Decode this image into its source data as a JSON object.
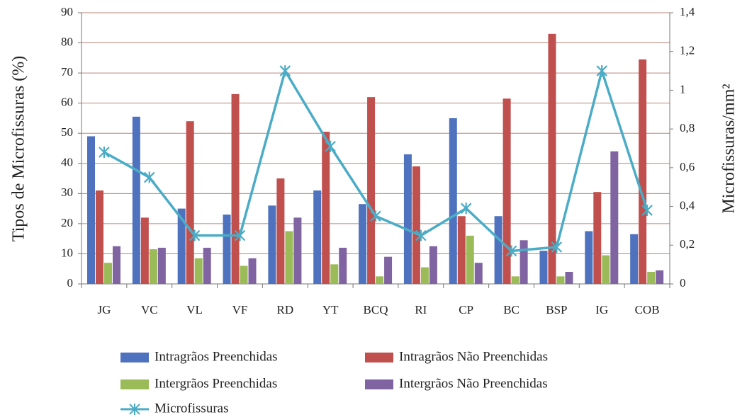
{
  "chart_data": {
    "type": "bar",
    "y_label": "Tipos de Microfissuras (%)",
    "y2_label": "Microfissuras/mm²",
    "categories": [
      "JG",
      "VC",
      "VL",
      "VF",
      "RD",
      "YT",
      "BCQ",
      "RI",
      "CP",
      "BC",
      "BSP",
      "IG",
      "COB"
    ],
    "series": [
      {
        "name": "Intragrãos Preenchidas",
        "color": "#4f72bf",
        "values": [
          49,
          55.5,
          25,
          23,
          26,
          31,
          26.5,
          43,
          55,
          22.5,
          11,
          17.5,
          16.5
        ]
      },
      {
        "name": "Intragrãos Não Preenchidas",
        "color": "#c0504d",
        "values": [
          31,
          22,
          54,
          63,
          35,
          50.5,
          62,
          39,
          22.5,
          61.5,
          83,
          30.5,
          74.5
        ]
      },
      {
        "name": "Intergrãos Preenchidas",
        "color": "#9bbb59",
        "values": [
          7,
          11.5,
          8.5,
          6,
          17.5,
          6.5,
          2.5,
          5.5,
          16,
          2.5,
          2.5,
          9.5,
          4
        ]
      },
      {
        "name": "Intergrãos Não Preenchidas",
        "color": "#8064a2",
        "values": [
          12.5,
          12,
          12,
          8.5,
          22,
          12,
          9,
          12.5,
          7,
          14.5,
          4,
          44,
          4.5
        ]
      },
      {
        "name": "Microfissuras",
        "color": "#4bacc6",
        "type": "line",
        "axis": "y2",
        "values": [
          0.68,
          0.55,
          0.25,
          0.25,
          1.1,
          0.71,
          0.35,
          0.25,
          0.39,
          0.17,
          0.19,
          1.1,
          0.38
        ]
      }
    ],
    "ylim": [
      0,
      90
    ],
    "yticks": [
      0,
      10,
      20,
      30,
      40,
      50,
      60,
      70,
      80,
      90
    ],
    "y2lim": [
      0,
      1.4
    ],
    "y2ticks": [
      0,
      {
        "value": 0.2,
        "label": "0,2"
      },
      {
        "value": 0.4,
        "label": "0,4"
      },
      {
        "value": 0.6,
        "label": "0,6"
      },
      {
        "value": 0.8,
        "label": "0,8"
      },
      1,
      {
        "value": 1.2,
        "label": "1,2"
      },
      {
        "value": 1.4,
        "label": "1,4"
      }
    ],
    "grid": true
  }
}
